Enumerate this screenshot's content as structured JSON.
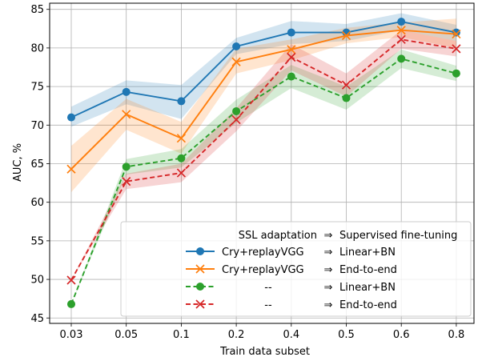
{
  "chart_data": {
    "type": "line",
    "xlabel": "Train data subset",
    "ylabel": "AUC, %",
    "categories": [
      "0.03",
      "0.05",
      "0.1",
      "0.2",
      "0.4",
      "0.5",
      "0.6",
      "0.8"
    ],
    "ylim": [
      44.3,
      85.8
    ],
    "yticks": [
      45,
      50,
      55,
      60,
      65,
      70,
      75,
      80,
      85
    ],
    "grid": true,
    "legend": {
      "placement": "lower-right",
      "header_left": "SSL adaptation",
      "header_arrow": "⇒",
      "header_right": "Supervised fine-tuning"
    },
    "series": [
      {
        "label_left": "Cry+replayVGG",
        "label_right": "Linear+BN",
        "color": "#1f77b4",
        "linestyle": "solid",
        "marker": "circle",
        "values": [
          71.0,
          74.3,
          73.1,
          80.2,
          82.0,
          82.0,
          83.4,
          82.0
        ],
        "band_low": [
          69.8,
          72.7,
          70.8,
          79.2,
          80.5,
          80.9,
          82.3,
          80.9
        ],
        "band_high": [
          72.4,
          75.8,
          75.2,
          81.3,
          83.5,
          83.1,
          84.5,
          83.0
        ]
      },
      {
        "label_left": "Cry+replayVGG",
        "label_right": "End-to-end",
        "color": "#ff7f0e",
        "linestyle": "solid",
        "marker": "x",
        "values": [
          64.3,
          71.4,
          68.3,
          78.2,
          79.8,
          81.6,
          82.3,
          81.8
        ],
        "band_low": [
          61.3,
          69.4,
          66.3,
          76.7,
          78.4,
          80.6,
          81.4,
          80.0
        ],
        "band_high": [
          67.3,
          73.4,
          70.4,
          79.9,
          81.1,
          82.6,
          83.3,
          83.8
        ]
      },
      {
        "label_left": "--",
        "label_right": "Linear+BN",
        "color": "#2ca02c",
        "linestyle": "dashed",
        "marker": "circle",
        "values": [
          46.8,
          64.6,
          65.7,
          71.8,
          76.3,
          73.5,
          78.6,
          76.7
        ],
        "band_low": [
          46.8,
          63.6,
          64.5,
          70.3,
          74.8,
          72.0,
          77.4,
          75.7
        ],
        "band_high": [
          46.8,
          65.6,
          66.9,
          73.3,
          77.8,
          75.0,
          79.8,
          77.7
        ]
      },
      {
        "label_left": "--",
        "label_right": "End-to-end",
        "color": "#d62728",
        "linestyle": "dashed",
        "marker": "x",
        "values": [
          49.9,
          62.7,
          63.8,
          70.7,
          78.8,
          75.2,
          81.1,
          79.9
        ],
        "band_low": [
          49.9,
          61.7,
          62.6,
          69.2,
          77.1,
          73.7,
          79.9,
          78.9
        ],
        "band_high": [
          49.9,
          63.7,
          65.0,
          72.2,
          80.5,
          76.7,
          82.3,
          80.9
        ]
      }
    ]
  }
}
